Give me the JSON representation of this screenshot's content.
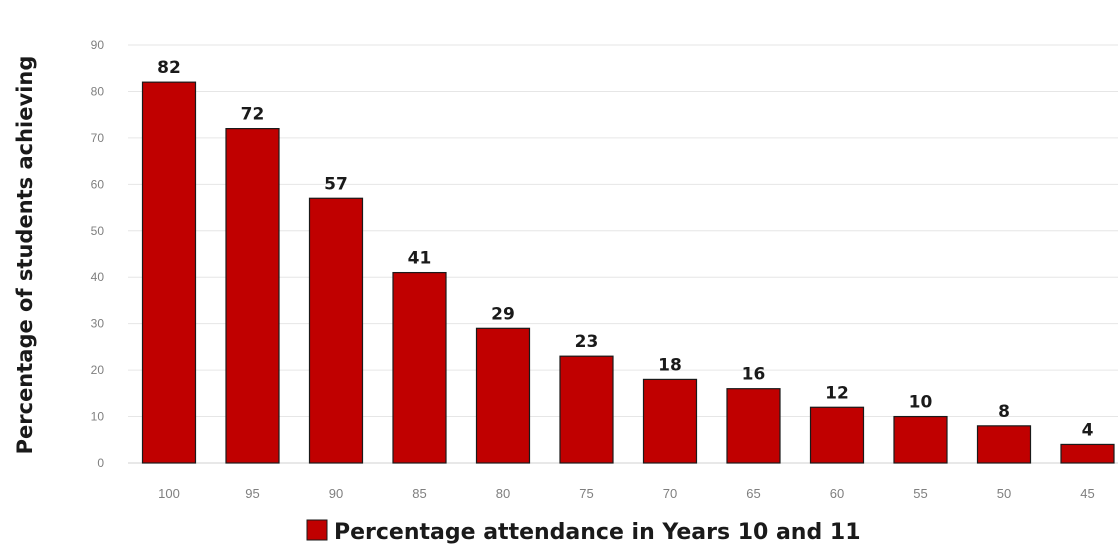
{
  "chart_data": {
    "type": "bar",
    "categories": [
      "100",
      "95",
      "90",
      "85",
      "80",
      "75",
      "70",
      "65",
      "60",
      "55",
      "50",
      "45"
    ],
    "values": [
      82,
      72,
      57,
      41,
      29,
      23,
      18,
      16,
      12,
      10,
      8,
      4
    ],
    "title": "",
    "xlabel": "",
    "ylabel": "Percentage of students achieving",
    "ylim": [
      0,
      90
    ],
    "yticks": [
      "0",
      "10",
      "20",
      "30",
      "40",
      "50",
      "60",
      "70",
      "80",
      "90"
    ],
    "grid": true,
    "data_labels": true,
    "legend": {
      "position": "bottom",
      "label": "Percentage attendance in Years 10 and 11"
    },
    "colors": {
      "bar": "#c00000",
      "bar_edge": "#1a1a1a"
    }
  }
}
